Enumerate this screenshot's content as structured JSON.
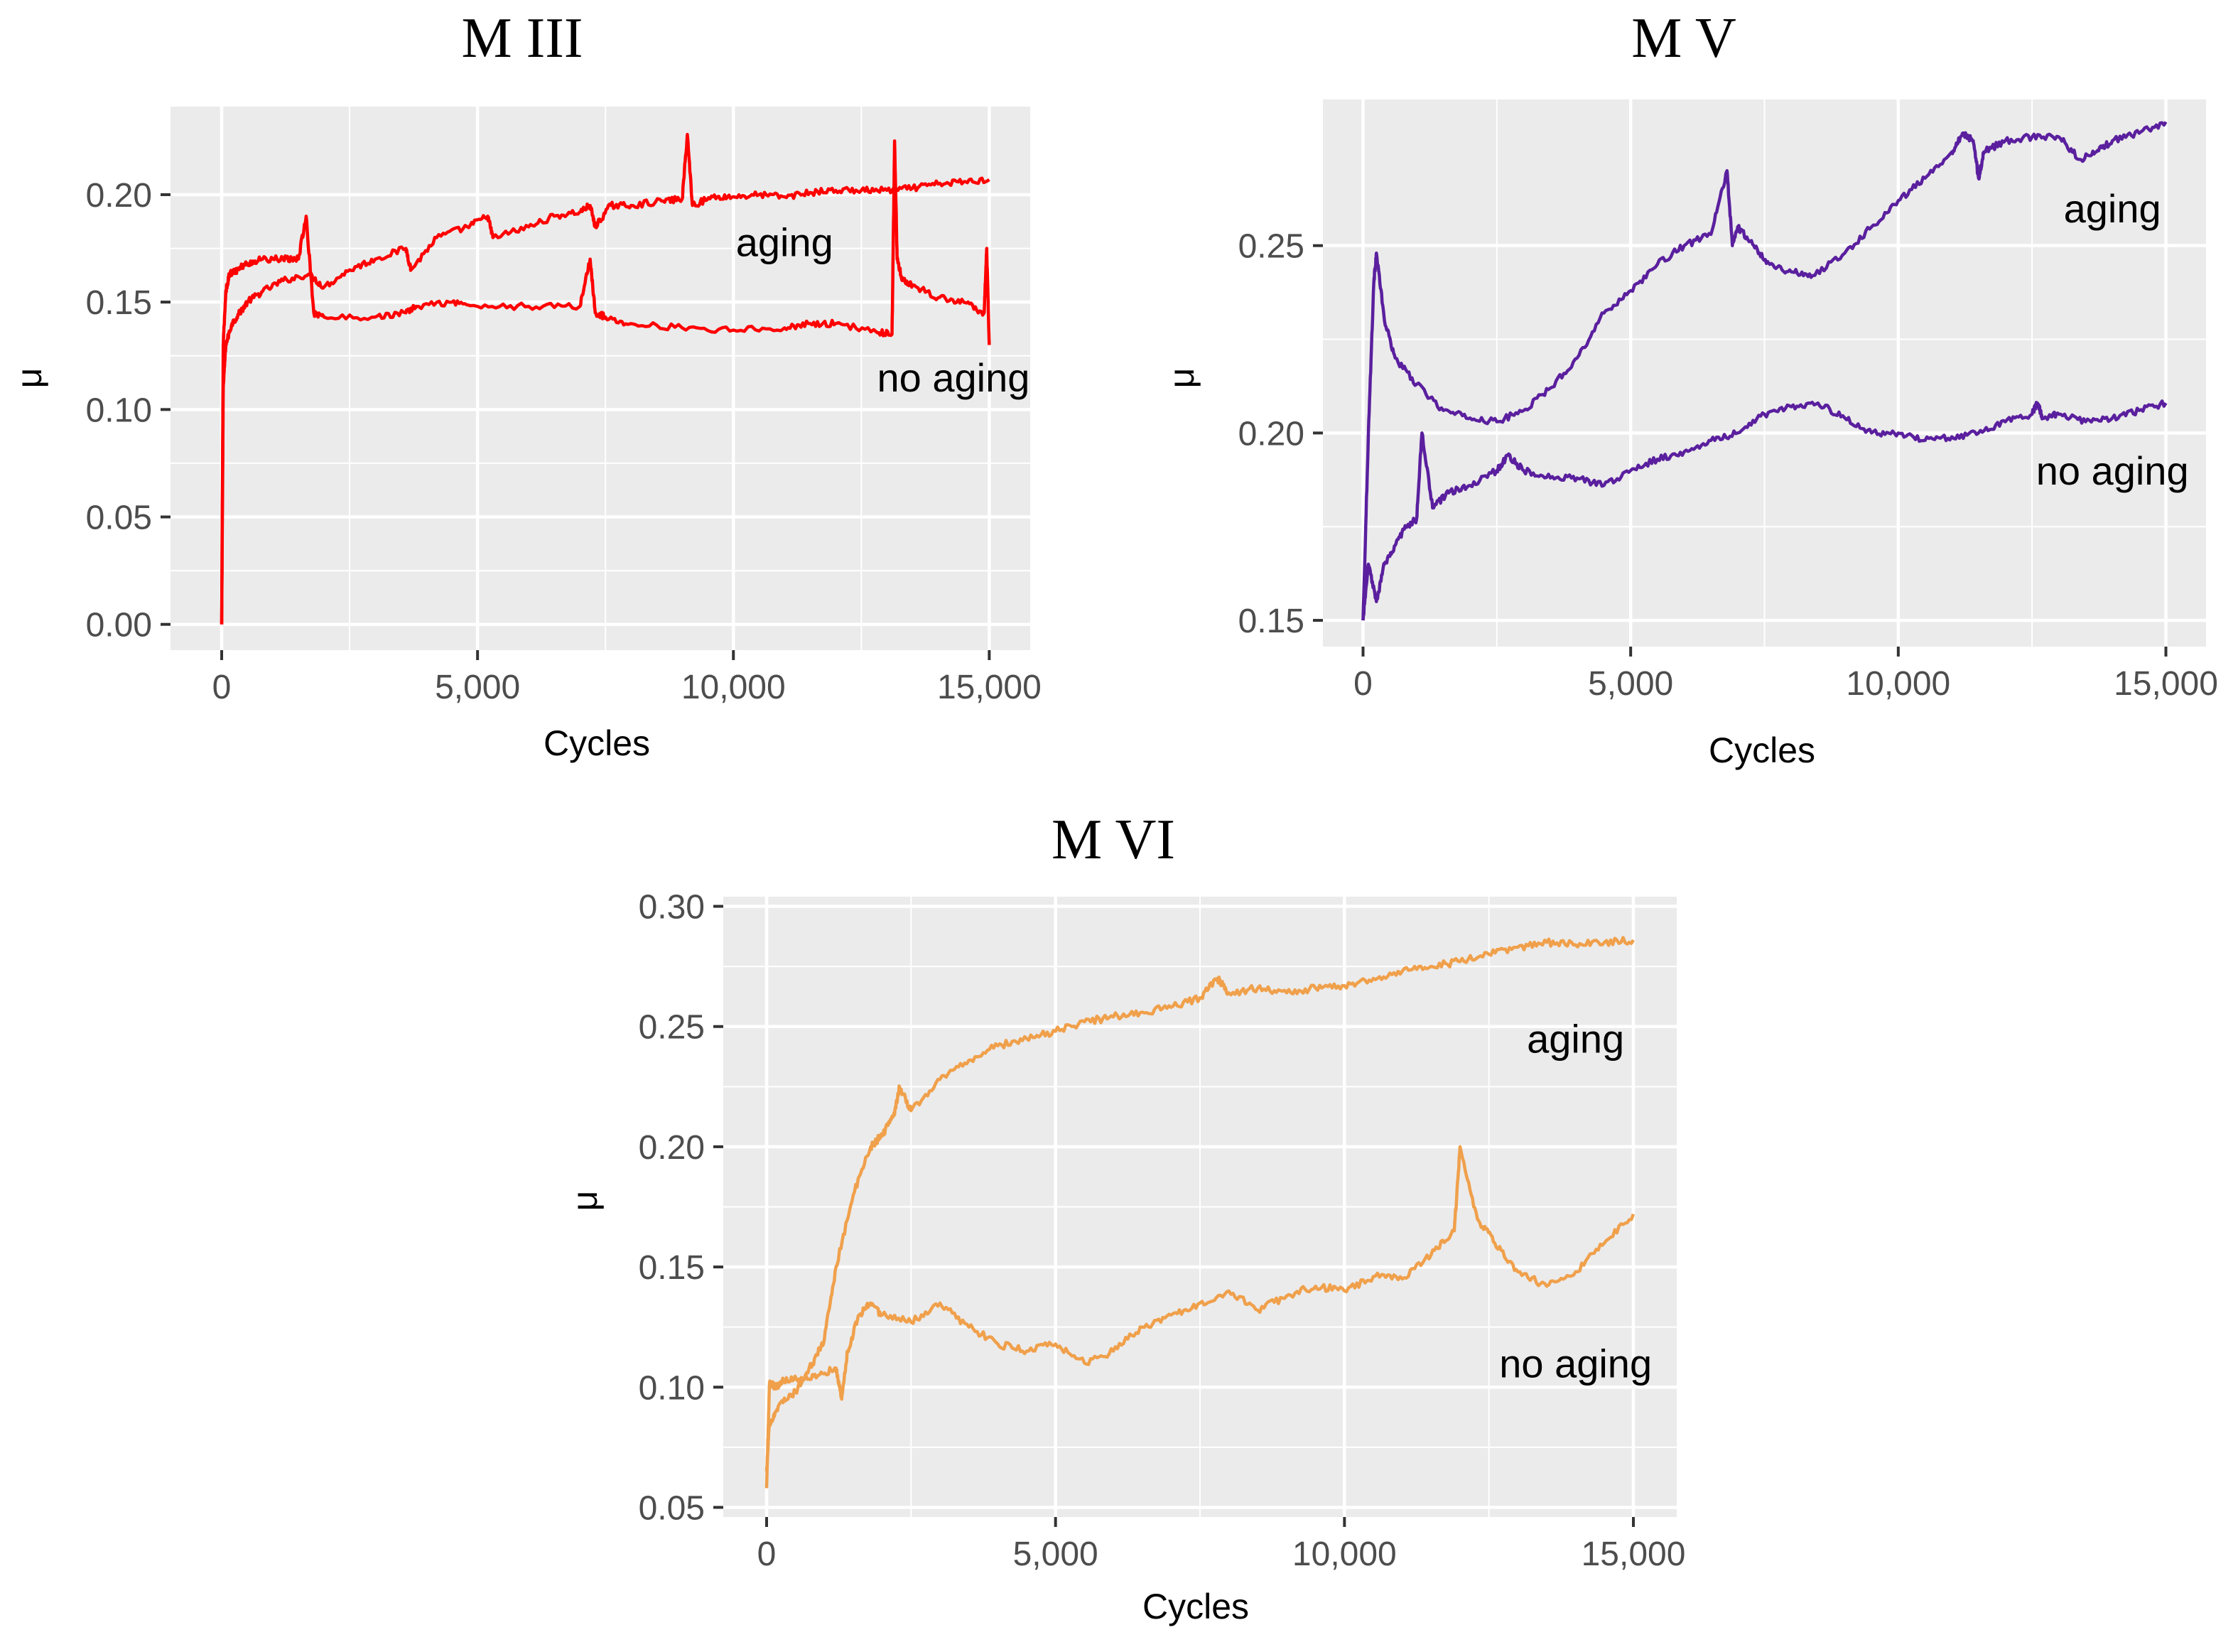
{
  "chart_data": [
    {
      "type": "line",
      "title": "M III",
      "xlabel": "Cycles",
      "ylabel": "μ",
      "xlim": [
        -1000,
        15800
      ],
      "ylim": [
        -0.012,
        0.241
      ],
      "xticks": [
        0,
        5000,
        10000,
        15000
      ],
      "xtick_labels": [
        "0",
        "5,000",
        "10,000",
        "15,000"
      ],
      "yticks": [
        0.0,
        0.05,
        0.1,
        0.15,
        0.2
      ],
      "ytick_labels": [
        "0.00",
        "0.05",
        "0.10",
        "0.15",
        "0.20"
      ],
      "color": "#ff0000",
      "series": [
        {
          "name": "aging",
          "label": "aging",
          "label_at": [
            11000,
            0.178
          ],
          "x": [
            0,
            30,
            80,
            200,
            350,
            500,
            800,
            1200,
            1700,
            2000,
            2500,
            3000,
            3600,
            3700,
            4200,
            4800,
            5200,
            5300,
            6000,
            6500,
            7000,
            7200,
            7300,
            7600,
            8000,
            8600,
            9000,
            9100,
            9200,
            9600,
            10000,
            10500,
            11000,
            11500,
            12000,
            12500,
            13000,
            13500,
            14000,
            14500,
            15000
          ],
          "values": [
            0.0,
            0.11,
            0.13,
            0.14,
            0.145,
            0.15,
            0.155,
            0.16,
            0.163,
            0.157,
            0.165,
            0.17,
            0.175,
            0.165,
            0.18,
            0.185,
            0.19,
            0.18,
            0.185,
            0.19,
            0.192,
            0.195,
            0.185,
            0.195,
            0.195,
            0.197,
            0.198,
            0.228,
            0.195,
            0.199,
            0.199,
            0.2,
            0.199,
            0.201,
            0.202,
            0.202,
            0.202,
            0.203,
            0.205,
            0.206,
            0.207
          ]
        },
        {
          "name": "no aging",
          "label": "no aging",
          "label_at": [
            14300,
            0.115
          ],
          "x": [
            0,
            30,
            80,
            150,
            300,
            500,
            800,
            1200,
            1500,
            1650,
            1800,
            2000,
            3000,
            3600,
            3800,
            4500,
            5000,
            6000,
            7000,
            7200,
            7300,
            7500,
            8000,
            9000,
            10000,
            11000,
            11500,
            12000,
            12800,
            13100,
            13150,
            13200,
            13300,
            13500,
            14000,
            14500,
            14900,
            14950,
            15000
          ],
          "values": [
            0.0,
            0.13,
            0.155,
            0.163,
            0.165,
            0.168,
            0.17,
            0.17,
            0.17,
            0.19,
            0.145,
            0.143,
            0.143,
            0.145,
            0.148,
            0.15,
            0.148,
            0.148,
            0.148,
            0.17,
            0.145,
            0.143,
            0.14,
            0.138,
            0.137,
            0.138,
            0.14,
            0.14,
            0.136,
            0.135,
            0.225,
            0.17,
            0.16,
            0.158,
            0.152,
            0.15,
            0.145,
            0.175,
            0.13
          ]
        }
      ]
    },
    {
      "type": "line",
      "title": "M V",
      "xlabel": "Cycles",
      "ylabel": "μ",
      "xlim": [
        -750,
        15750
      ],
      "ylim": [
        0.143,
        0.289
      ],
      "xticks": [
        0,
        5000,
        10000,
        15000
      ],
      "xtick_labels": [
        "0",
        "5,000",
        "10,000",
        "15,000"
      ],
      "yticks": [
        0.15,
        0.2,
        0.25
      ],
      "ytick_labels": [
        "0.15",
        "0.20",
        "0.25"
      ],
      "color": "#5a1f9e",
      "series": [
        {
          "name": "aging",
          "label": "aging",
          "label_at": [
            14000,
            0.26
          ],
          "x": [
            0,
            100,
            200,
            250,
            400,
            600,
            1000,
            1500,
            2000,
            2500,
            3000,
            3500,
            4000,
            4500,
            5000,
            5500,
            6000,
            6500,
            6800,
            6900,
            7000,
            7300,
            7600,
            8000,
            8400,
            9000,
            9500,
            10000,
            10500,
            11000,
            11200,
            11400,
            11500,
            11600,
            12000,
            12500,
            13000,
            13400,
            13700,
            14000,
            14500,
            15000
          ],
          "values": [
            0.15,
            0.2,
            0.24,
            0.248,
            0.23,
            0.22,
            0.213,
            0.206,
            0.204,
            0.203,
            0.206,
            0.212,
            0.22,
            0.232,
            0.238,
            0.245,
            0.25,
            0.253,
            0.27,
            0.25,
            0.255,
            0.25,
            0.245,
            0.243,
            0.242,
            0.248,
            0.255,
            0.262,
            0.268,
            0.275,
            0.28,
            0.278,
            0.268,
            0.275,
            0.278,
            0.279,
            0.279,
            0.273,
            0.275,
            0.278,
            0.28,
            0.283
          ]
        },
        {
          "name": "no aging",
          "label": "no aging",
          "label_at": [
            14000,
            0.19
          ],
          "x": [
            0,
            100,
            250,
            400,
            600,
            800,
            1000,
            1100,
            1300,
            1600,
            2000,
            2500,
            2700,
            3000,
            3500,
            4000,
            4500,
            5000,
            5500,
            6000,
            6500,
            7000,
            7500,
            8000,
            8500,
            9000,
            9500,
            10000,
            10500,
            11000,
            11500,
            12000,
            12500,
            12600,
            12700,
            13000,
            13500,
            14000,
            14500,
            15000
          ],
          "values": [
            0.15,
            0.165,
            0.155,
            0.165,
            0.17,
            0.175,
            0.177,
            0.2,
            0.18,
            0.184,
            0.186,
            0.19,
            0.194,
            0.19,
            0.188,
            0.188,
            0.186,
            0.19,
            0.193,
            0.195,
            0.198,
            0.2,
            0.205,
            0.207,
            0.208,
            0.204,
            0.2,
            0.2,
            0.198,
            0.199,
            0.2,
            0.203,
            0.205,
            0.208,
            0.204,
            0.205,
            0.203,
            0.204,
            0.206,
            0.208
          ]
        }
      ]
    },
    {
      "type": "line",
      "title": "M VI",
      "xlabel": "Cycles",
      "ylabel": "μ",
      "xlim": [
        -750,
        15750
      ],
      "ylim": [
        0.046,
        0.304
      ],
      "xticks": [
        0,
        5000,
        10000,
        15000
      ],
      "xtick_labels": [
        "0",
        "5,000",
        "10,000",
        "15,000"
      ],
      "yticks": [
        0.05,
        0.1,
        0.15,
        0.2,
        0.25,
        0.3
      ],
      "ytick_labels": [
        "0.05",
        "0.10",
        "0.15",
        "0.20",
        "0.25",
        "0.30"
      ],
      "color": "#f0a04b",
      "series": [
        {
          "name": "aging",
          "label": "aging",
          "label_at": [
            14000,
            0.245
          ],
          "x": [
            0,
            50,
            200,
            500,
            800,
            1000,
            1200,
            1500,
            1800,
            2000,
            2200,
            2300,
            2500,
            3000,
            3500,
            4000,
            4500,
            5000,
            5500,
            6000,
            6500,
            7000,
            7500,
            7800,
            8000,
            8500,
            9000,
            9500,
            10000,
            10500,
            11000,
            11500,
            12000,
            12500,
            13000,
            13500,
            14000,
            14500,
            15000
          ],
          "values": [
            0.065,
            0.085,
            0.092,
            0.098,
            0.11,
            0.12,
            0.15,
            0.18,
            0.2,
            0.205,
            0.213,
            0.225,
            0.215,
            0.228,
            0.236,
            0.242,
            0.245,
            0.248,
            0.252,
            0.254,
            0.256,
            0.258,
            0.262,
            0.27,
            0.264,
            0.266,
            0.264,
            0.266,
            0.267,
            0.27,
            0.273,
            0.275,
            0.277,
            0.28,
            0.283,
            0.285,
            0.284,
            0.285,
            0.286
          ]
        },
        {
          "name": "no aging",
          "label": "no aging",
          "label_at": [
            14000,
            0.11
          ],
          "x": [
            0,
            50,
            150,
            300,
            600,
            900,
            1200,
            1300,
            1400,
            1600,
            1800,
            2000,
            2500,
            3000,
            3500,
            4000,
            4500,
            5000,
            5500,
            6000,
            6500,
            7000,
            7500,
            8000,
            8500,
            9000,
            9500,
            10000,
            10500,
            11000,
            11500,
            11900,
            12000,
            12300,
            12600,
            13000,
            13500,
            14000,
            14500,
            15000
          ],
          "values": [
            0.058,
            0.102,
            0.1,
            0.103,
            0.104,
            0.105,
            0.108,
            0.095,
            0.115,
            0.13,
            0.135,
            0.13,
            0.127,
            0.135,
            0.125,
            0.118,
            0.115,
            0.118,
            0.11,
            0.115,
            0.125,
            0.13,
            0.135,
            0.14,
            0.132,
            0.138,
            0.142,
            0.14,
            0.146,
            0.145,
            0.155,
            0.165,
            0.2,
            0.17,
            0.16,
            0.148,
            0.142,
            0.148,
            0.16,
            0.172
          ]
        }
      ]
    }
  ]
}
